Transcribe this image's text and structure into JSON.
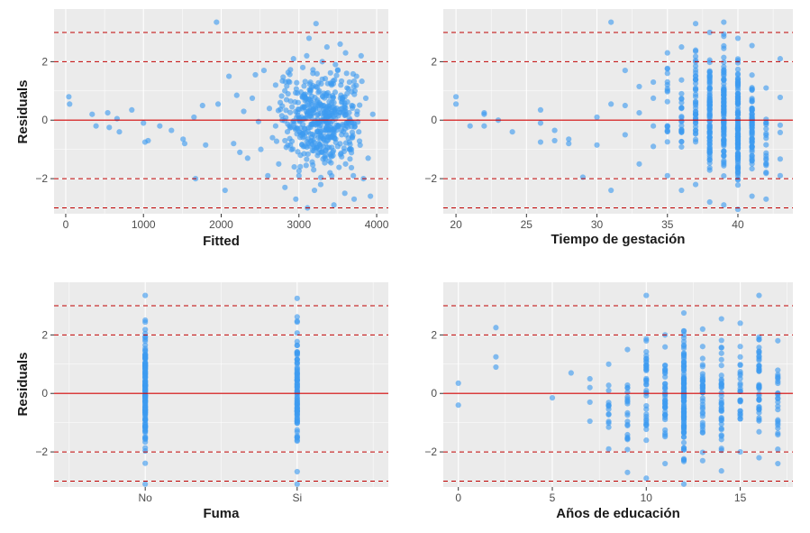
{
  "colors": {
    "panel_bg": "#ebebeb",
    "grid": "#ffffff",
    "point": "#3d9bf0",
    "zero_line": "#d00000",
    "dashed_line": "#c00000"
  },
  "chart_data": [
    {
      "type": "scatter",
      "xlabel": "Fitted",
      "ylabel": "Residuals",
      "xlim": [
        -150,
        4150
      ],
      "ylim": [
        -3.2,
        3.8
      ],
      "xticks": [
        0,
        1000,
        2000,
        3000,
        4000
      ],
      "xtick_labels": [
        "0",
        "1000",
        "2000",
        "3000",
        "4000"
      ],
      "yticks": [
        -2,
        0,
        2
      ],
      "ytick_labels": [
        "−2",
        "0",
        "2"
      ],
      "hlines_solid": [
        0
      ],
      "hlines_dashed": [
        -3,
        -2,
        2,
        3
      ],
      "points": [
        [
          40,
          0.8
        ],
        [
          50,
          0.55
        ],
        [
          340,
          0.2
        ],
        [
          390,
          -0.2
        ],
        [
          540,
          0.25
        ],
        [
          560,
          -0.25
        ],
        [
          660,
          0.05
        ],
        [
          690,
          -0.4
        ],
        [
          850,
          0.35
        ],
        [
          1000,
          -0.1
        ],
        [
          1020,
          -0.75
        ],
        [
          1060,
          -0.7
        ],
        [
          1210,
          -0.2
        ],
        [
          1360,
          -0.35
        ],
        [
          1510,
          -0.65
        ],
        [
          1530,
          -0.8
        ],
        [
          1650,
          0.1
        ],
        [
          1670,
          -2.0
        ],
        [
          1760,
          0.5
        ],
        [
          1800,
          -0.85
        ],
        [
          1940,
          3.35
        ],
        [
          1960,
          0.55
        ],
        [
          2050,
          -2.4
        ],
        [
          2100,
          1.5
        ],
        [
          2160,
          -0.8
        ],
        [
          2200,
          0.85
        ],
        [
          2240,
          -1.1
        ],
        [
          2290,
          0.3
        ],
        [
          2340,
          -1.3
        ],
        [
          2400,
          0.75
        ],
        [
          2440,
          1.55
        ],
        [
          2480,
          -0.05
        ],
        [
          2510,
          -1.0
        ],
        [
          2550,
          1.7
        ],
        [
          2600,
          -1.9
        ],
        [
          2620,
          0.4
        ],
        [
          2660,
          -0.6
        ],
        [
          2700,
          1.2
        ],
        [
          2740,
          -1.5
        ],
        [
          2780,
          0.15
        ],
        [
          2820,
          -2.3
        ],
        [
          2860,
          0.9
        ],
        [
          2890,
          -0.85
        ],
        [
          2930,
          2.1
        ],
        [
          2960,
          -2.7
        ],
        [
          2990,
          0.6
        ],
        [
          3020,
          -1.2
        ],
        [
          3050,
          1.8
        ],
        [
          3080,
          -0.3
        ],
        [
          3110,
          -3.0
        ],
        [
          3130,
          2.8
        ],
        [
          3160,
          0.1
        ],
        [
          3190,
          -1.7
        ],
        [
          3220,
          3.3
        ],
        [
          3250,
          0.95
        ],
        [
          3280,
          -2.2
        ],
        [
          3300,
          1.4
        ],
        [
          3330,
          -0.55
        ],
        [
          3360,
          2.5
        ],
        [
          3390,
          -1.4
        ],
        [
          3420,
          0.3
        ],
        [
          3450,
          -2.9
        ],
        [
          3470,
          1.9
        ],
        [
          3500,
          -0.9
        ],
        [
          3530,
          2.6
        ],
        [
          3560,
          -0.15
        ],
        [
          3590,
          -2.5
        ],
        [
          3620,
          1.1
        ],
        [
          3650,
          -1.0
        ],
        [
          3680,
          0.5
        ],
        [
          3710,
          -2.7
        ],
        [
          3740,
          1.5
        ],
        [
          3770,
          -0.4
        ],
        [
          3800,
          2.2
        ],
        [
          3830,
          -2.0
        ],
        [
          3860,
          0.75
        ],
        [
          3890,
          -1.3
        ],
        [
          3920,
          -2.6
        ],
        [
          3950,
          0.2
        ],
        [
          2700,
          -0.2
        ],
        [
          2760,
          0.6
        ],
        [
          2820,
          -0.7
        ],
        [
          2880,
          1.3
        ],
        [
          2940,
          -1.6
        ],
        [
          3000,
          0.0
        ],
        [
          3060,
          0.8
        ],
        [
          3120,
          -0.8
        ],
        [
          3180,
          1.6
        ],
        [
          3240,
          -0.1
        ],
        [
          3300,
          -1.1
        ],
        [
          3360,
          0.45
        ],
        [
          3420,
          1.2
        ],
        [
          3480,
          -0.35
        ],
        [
          3540,
          0.85
        ],
        [
          3600,
          -1.5
        ],
        [
          3660,
          0.0
        ],
        [
          3720,
          1.0
        ],
        [
          3000,
          -1.9
        ],
        [
          3100,
          2.2
        ],
        [
          3200,
          -2.4
        ],
        [
          3300,
          2.0
        ],
        [
          3400,
          -1.8
        ],
        [
          3500,
          1.7
        ],
        [
          3600,
          2.3
        ],
        [
          3700,
          -1.9
        ],
        [
          3150,
          0.35
        ],
        [
          3250,
          -0.6
        ],
        [
          3350,
          0.9
        ],
        [
          3450,
          -0.5
        ],
        [
          3550,
          0.4
        ],
        [
          3650,
          -0.75
        ],
        [
          3050,
          -0.45
        ],
        [
          3150,
          1.0
        ],
        [
          3250,
          0.5
        ],
        [
          3350,
          -0.25
        ],
        [
          3450,
          0.6
        ],
        [
          3550,
          -1.25
        ],
        [
          3650,
          1.3
        ],
        [
          3750,
          0.3
        ]
      ]
    },
    {
      "type": "scatter",
      "xlabel": "Tiempo de gestación",
      "ylabel": "",
      "xlim": [
        19.1,
        43.9
      ],
      "ylim": [
        -3.2,
        3.8
      ],
      "xticks": [
        20,
        25,
        30,
        35,
        40
      ],
      "xtick_labels": [
        "20",
        "25",
        "30",
        "35",
        "40"
      ],
      "yticks": [
        -2,
        0,
        2
      ],
      "ytick_labels": [
        "−2",
        "0",
        "2"
      ],
      "hlines_solid": [
        0
      ],
      "hlines_dashed": [
        -3,
        -2,
        2,
        3
      ],
      "points": [
        [
          20,
          0.8
        ],
        [
          20,
          0.55
        ],
        [
          21,
          -0.2
        ],
        [
          22,
          0.2
        ],
        [
          22,
          -0.2
        ],
        [
          22,
          0.25
        ],
        [
          23,
          0.0
        ],
        [
          24,
          -0.4
        ],
        [
          26,
          0.35
        ],
        [
          26,
          -0.75
        ],
        [
          26,
          -0.1
        ],
        [
          27,
          -0.7
        ],
        [
          27,
          -0.35
        ],
        [
          28,
          -0.65
        ],
        [
          28,
          -0.8
        ],
        [
          29,
          -1.95
        ],
        [
          30,
          0.1
        ],
        [
          30,
          -0.85
        ],
        [
          31,
          3.35
        ],
        [
          31,
          0.55
        ],
        [
          31,
          -2.4
        ],
        [
          32,
          1.7
        ],
        [
          32,
          0.5
        ],
        [
          32,
          -0.5
        ],
        [
          33,
          1.15
        ],
        [
          33,
          -1.5
        ],
        [
          33,
          0.25
        ],
        [
          34,
          0.75
        ],
        [
          34,
          -0.9
        ],
        [
          34,
          1.3
        ],
        [
          34,
          -0.2
        ]
      ],
      "strips": [
        {
          "x": 35,
          "lo": -1.9,
          "hi": 2.3,
          "n": 18
        },
        {
          "x": 36,
          "lo": -2.4,
          "hi": 2.5,
          "n": 24
        },
        {
          "x": 37,
          "lo": -2.2,
          "hi": 3.3,
          "n": 45
        },
        {
          "x": 38,
          "lo": -2.8,
          "hi": 3.0,
          "n": 90
        },
        {
          "x": 39,
          "lo": -2.9,
          "hi": 3.35,
          "n": 110
        },
        {
          "x": 40,
          "lo": -3.05,
          "hi": 2.8,
          "n": 120
        },
        {
          "x": 41,
          "lo": -2.6,
          "hi": 2.55,
          "n": 70
        },
        {
          "x": 42,
          "lo": -2.7,
          "hi": 1.1,
          "n": 20
        },
        {
          "x": 43,
          "lo": -1.9,
          "hi": 2.1,
          "n": 6
        }
      ]
    },
    {
      "type": "scatter",
      "xlabel": "Fuma",
      "ylabel": "Residuals",
      "categories": [
        "No",
        "Si"
      ],
      "xlim": [
        0.4,
        2.6
      ],
      "ylim": [
        -3.2,
        3.8
      ],
      "xticks": [
        1,
        2
      ],
      "xtick_labels": [
        "No",
        "Si"
      ],
      "yticks": [
        -2,
        0,
        2
      ],
      "ytick_labels": [
        "−2",
        "0",
        "2"
      ],
      "hlines_solid": [
        0
      ],
      "hlines_dashed": [
        -3,
        -2,
        2,
        3
      ],
      "strips": [
        {
          "x": 1,
          "lo": -3.1,
          "hi": 3.35,
          "n": 140
        },
        {
          "x": 2,
          "lo": -3.1,
          "hi": 3.25,
          "n": 90
        }
      ]
    },
    {
      "type": "scatter",
      "xlabel": "Años de educación",
      "ylabel": "",
      "xlim": [
        -0.8,
        17.8
      ],
      "ylim": [
        -3.2,
        3.8
      ],
      "xticks": [
        0,
        5,
        10,
        15
      ],
      "xtick_labels": [
        "0",
        "5",
        "10",
        "15"
      ],
      "yticks": [
        -2,
        0,
        2
      ],
      "ytick_labels": [
        "−2",
        "0",
        "2"
      ],
      "hlines_solid": [
        0
      ],
      "hlines_dashed": [
        -3,
        -2,
        2,
        3
      ],
      "points": [
        [
          0,
          0.35
        ],
        [
          0,
          -0.4
        ],
        [
          2,
          2.25
        ],
        [
          2,
          1.25
        ],
        [
          2,
          0.9
        ],
        [
          5,
          -0.15
        ],
        [
          6,
          0.7
        ],
        [
          7,
          0.5
        ],
        [
          7,
          -0.95
        ],
        [
          7,
          0.2
        ],
        [
          7,
          -0.3
        ]
      ],
      "strips": [
        {
          "x": 8,
          "lo": -1.9,
          "hi": 1.0,
          "n": 14
        },
        {
          "x": 9,
          "lo": -2.7,
          "hi": 1.5,
          "n": 22
        },
        {
          "x": 10,
          "lo": -2.9,
          "hi": 3.35,
          "n": 40
        },
        {
          "x": 11,
          "lo": -2.4,
          "hi": 2.0,
          "n": 40
        },
        {
          "x": 12,
          "lo": -3.1,
          "hi": 2.75,
          "n": 120
        },
        {
          "x": 13,
          "lo": -2.3,
          "hi": 2.2,
          "n": 40
        },
        {
          "x": 14,
          "lo": -2.65,
          "hi": 2.55,
          "n": 40
        },
        {
          "x": 15,
          "lo": -2.0,
          "hi": 2.4,
          "n": 28
        },
        {
          "x": 16,
          "lo": -2.2,
          "hi": 3.35,
          "n": 45
        },
        {
          "x": 17,
          "lo": -2.4,
          "hi": 1.8,
          "n": 25
        }
      ]
    }
  ]
}
